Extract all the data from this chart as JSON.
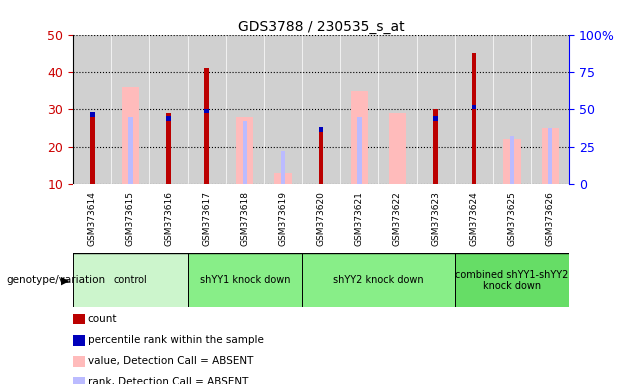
{
  "title": "GDS3788 / 230535_s_at",
  "samples": [
    "GSM373614",
    "GSM373615",
    "GSM373616",
    "GSM373617",
    "GSM373618",
    "GSM373619",
    "GSM373620",
    "GSM373621",
    "GSM373622",
    "GSM373623",
    "GSM373624",
    "GSM373625",
    "GSM373626"
  ],
  "count_values": [
    29,
    null,
    29,
    41,
    null,
    null,
    24,
    null,
    null,
    30,
    45,
    null,
    null
  ],
  "percentile_rank": [
    28,
    null,
    27,
    29,
    null,
    null,
    24,
    null,
    null,
    27,
    30,
    null,
    null
  ],
  "absent_value": [
    null,
    36,
    null,
    null,
    28,
    13,
    null,
    35,
    29,
    null,
    null,
    22,
    25
  ],
  "absent_rank": [
    null,
    28,
    null,
    null,
    27,
    19,
    null,
    28,
    null,
    null,
    null,
    23,
    25
  ],
  "group_info": [
    {
      "indices": [
        0,
        1,
        2
      ],
      "label": "control",
      "color": "#ccf5cc"
    },
    {
      "indices": [
        3,
        4,
        5
      ],
      "label": "shYY1 knock down",
      "color": "#88ee88"
    },
    {
      "indices": [
        6,
        7,
        8,
        9
      ],
      "label": "shYY2 knock down",
      "color": "#88ee88"
    },
    {
      "indices": [
        10,
        11,
        12
      ],
      "label": "combined shYY1-shYY2\nknock down",
      "color": "#66dd66"
    }
  ],
  "ymin": 10,
  "ymax": 50,
  "yticks": [
    10,
    20,
    30,
    40,
    50
  ],
  "right_ytick_vals": [
    0,
    25,
    50,
    75,
    100
  ],
  "right_ytick_labels": [
    "0",
    "25",
    "50",
    "75",
    "100%"
  ],
  "bar_color_count": "#bb0000",
  "bar_color_rank": "#0000bb",
  "bar_color_absent_val": "#ffbbbb",
  "bar_color_absent_rank": "#bbbbff",
  "bg_color": "#d0d0d0",
  "legend_items": [
    {
      "label": "count",
      "color": "#bb0000"
    },
    {
      "label": "percentile rank within the sample",
      "color": "#0000bb"
    },
    {
      "label": "value, Detection Call = ABSENT",
      "color": "#ffbbbb"
    },
    {
      "label": "rank, Detection Call = ABSENT",
      "color": "#bbbbff"
    }
  ]
}
